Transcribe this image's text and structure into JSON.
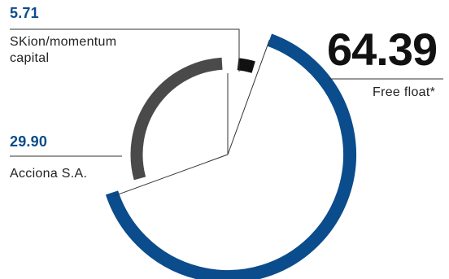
{
  "chart_data": {
    "type": "pie",
    "slices": [
      {
        "label": "Free float*",
        "value": 64.39,
        "value_text": "64.39",
        "color": "#0a4c8c"
      },
      {
        "label": "Acciona S.A.",
        "value": 29.9,
        "value_text": "29.90",
        "color": "#4a4a4a"
      },
      {
        "label": "SKion/momentum capital",
        "label_lines": [
          "SKion/momentum",
          "capital"
        ],
        "value": 5.71,
        "value_text": "5.71",
        "color": "#111111"
      }
    ]
  }
}
